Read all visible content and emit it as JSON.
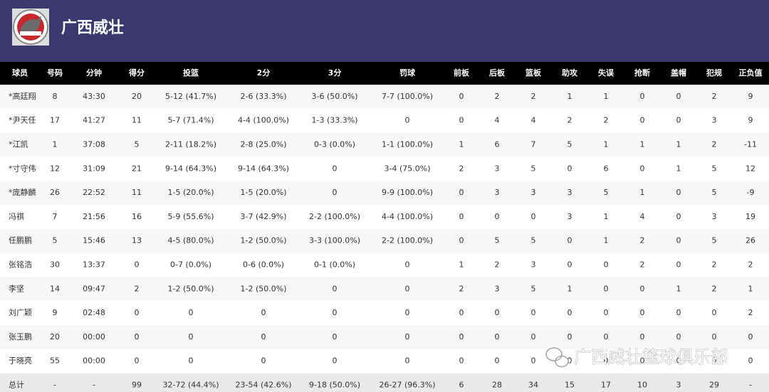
{
  "header": {
    "title": "广西威壮"
  },
  "table": {
    "columns": [
      "球员",
      "号码",
      "分钟",
      "得分",
      "投篮",
      "2分",
      "3分",
      "罚球",
      "前板",
      "后板",
      "篮板",
      "助攻",
      "失误",
      "抢断",
      "盖帽",
      "犯规",
      "正负值"
    ],
    "rows": [
      [
        "*高廷翔",
        "8",
        "43:30",
        "20",
        "5-12 (41.7%)",
        "2-6 (33.3%)",
        "3-6 (50.0%)",
        "7-7 (100.0%)",
        "0",
        "2",
        "2",
        "1",
        "1",
        "0",
        "0",
        "2",
        "9"
      ],
      [
        "*尹天任",
        "17",
        "41:27",
        "11",
        "5-7 (71.4%)",
        "4-4 (100.0%)",
        "1-3 (33.3%)",
        "0",
        "0",
        "4",
        "4",
        "2",
        "2",
        "0",
        "0",
        "3",
        "9"
      ],
      [
        "*江凯",
        "1",
        "37:08",
        "5",
        "2-11 (18.2%)",
        "2-8 (25.0%)",
        "0-3 (0.0%)",
        "1-1 (100.0%)",
        "1",
        "6",
        "7",
        "5",
        "1",
        "1",
        "1",
        "2",
        "-11"
      ],
      [
        "*寸守伟",
        "12",
        "31:09",
        "21",
        "9-14 (64.3%)",
        "9-14 (64.3%)",
        "0",
        "3-4 (75.0%)",
        "2",
        "3",
        "5",
        "0",
        "6",
        "0",
        "1",
        "5",
        "12"
      ],
      [
        "*庞静麟",
        "26",
        "22:52",
        "11",
        "1-5 (20.0%)",
        "1-5 (20.0%)",
        "0",
        "9-9 (100.0%)",
        "0",
        "3",
        "3",
        "3",
        "5",
        "1",
        "0",
        "5",
        "-9"
      ],
      [
        "冯祺",
        "7",
        "21:56",
        "16",
        "5-9 (55.6%)",
        "3-7 (42.9%)",
        "2-2 (100.0%)",
        "4-4 (100.0%)",
        "0",
        "0",
        "0",
        "3",
        "1",
        "4",
        "0",
        "3",
        "19"
      ],
      [
        "任鹏鹏",
        "5",
        "15:46",
        "13",
        "4-5 (80.0%)",
        "1-2 (50.0%)",
        "3-3 (100.0%)",
        "2-2 (100.0%)",
        "0",
        "5",
        "5",
        "0",
        "1",
        "2",
        "0",
        "5",
        "26"
      ],
      [
        "张铭浩",
        "30",
        "13:37",
        "0",
        "0-7 (0.0%)",
        "0-6 (0.0%)",
        "0-1 (0.0%)",
        "0",
        "1",
        "2",
        "3",
        "0",
        "0",
        "2",
        "0",
        "2",
        "2"
      ],
      [
        "李坚",
        "14",
        "09:47",
        "2",
        "1-2 (50.0%)",
        "1-2 (50.0%)",
        "0",
        "0",
        "2",
        "3",
        "5",
        "1",
        "0",
        "0",
        "1",
        "2",
        "1"
      ],
      [
        "刘广颖",
        "9",
        "02:48",
        "0",
        "0",
        "0",
        "0",
        "0",
        "0",
        "0",
        "0",
        "0",
        "0",
        "0",
        "0",
        "0",
        "2"
      ],
      [
        "张玉鹏",
        "20",
        "00:00",
        "0",
        "0",
        "0",
        "0",
        "0",
        "0",
        "0",
        "0",
        "0",
        "0",
        "0",
        "0",
        "0",
        "0"
      ],
      [
        "于晓亮",
        "55",
        "00:00",
        "0",
        "0",
        "0",
        "0",
        "0",
        "0",
        "0",
        "0",
        "0",
        "0",
        "0",
        "0",
        "0",
        "0"
      ]
    ],
    "total": [
      "总计",
      "-",
      "-",
      "99",
      "32-72 (44.4%)",
      "23-54 (42.6%)",
      "9-18 (50.0%)",
      "26-27 (96.3%)",
      "6",
      "28",
      "34",
      "15",
      "17",
      "10",
      "3",
      "29",
      "-"
    ]
  },
  "watermark": "广西威壮篮球俱乐部"
}
